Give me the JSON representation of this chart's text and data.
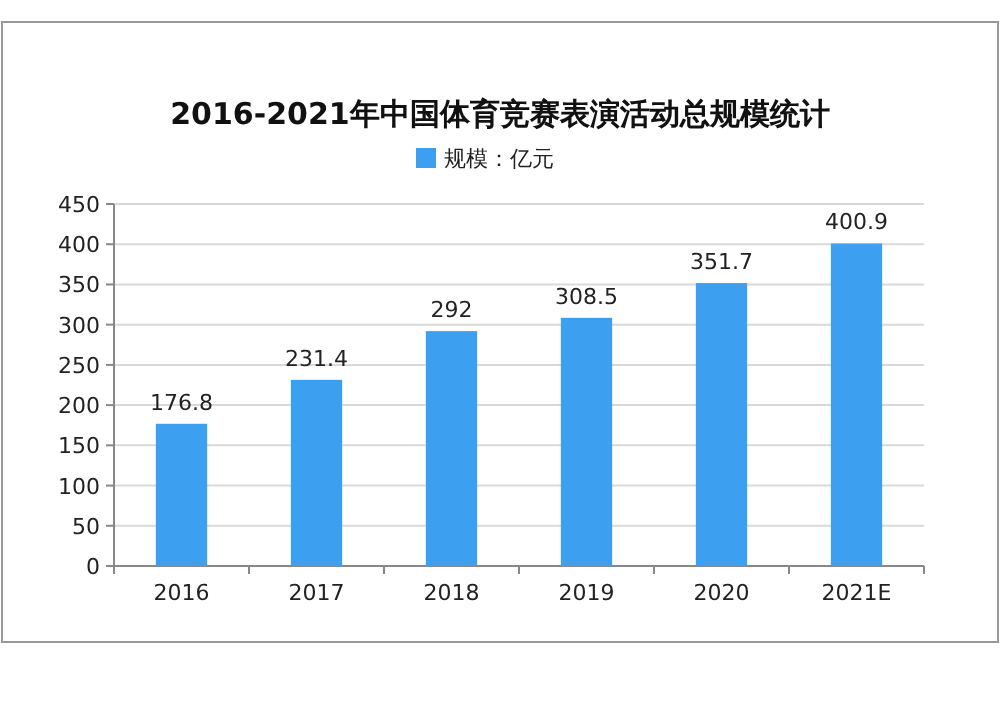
{
  "chart_data": {
    "type": "bar",
    "title": "2016-2021年中国体育竞赛表演活动总规模统计",
    "categories": [
      "2016",
      "2017",
      "2018",
      "2019",
      "2020",
      "2021E"
    ],
    "series": [
      {
        "name": "规模：亿元",
        "color": "#3d9ff0",
        "values": [
          176.8,
          231.4,
          292,
          308.5,
          351.7,
          400.9
        ]
      }
    ],
    "ylim": [
      0,
      450
    ],
    "yticks": [
      0,
      50,
      100,
      150,
      200,
      250,
      300,
      350,
      400,
      450
    ],
    "grid": "y",
    "legend": "top",
    "data_labels": true
  }
}
